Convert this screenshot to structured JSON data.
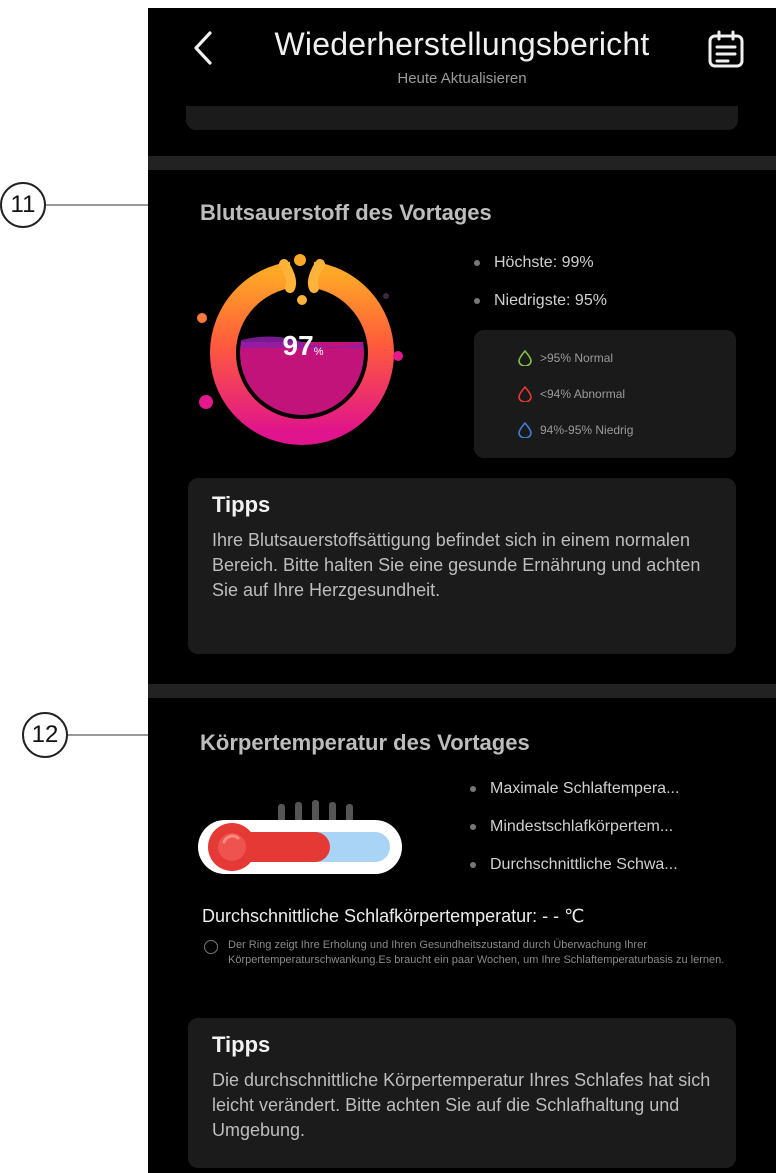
{
  "annotations": [
    "11",
    "12"
  ],
  "header": {
    "title": "Wiederherstellungsbericht",
    "subtitle": "Heute Aktualisieren"
  },
  "blood_oxygen": {
    "title": "Blutsauerstoff des Vortages",
    "value": "97",
    "unit": "%",
    "fill_level": 0.97,
    "highest": "Höchste: 99%",
    "lowest": "Niedrigste: 95%",
    "legend": [
      {
        "label": ">95% Normal",
        "color": "#7ec241"
      },
      {
        "label": "<94% Abnormal",
        "color": "#e53935"
      },
      {
        "label": "94%-95% Niedrig",
        "color": "#3f7fd6"
      }
    ],
    "tips_title": "Tipps",
    "tips_text": "Ihre Blutsauerstoffsättigung befindet sich in einem normalen Bereich. Bitte halten Sie eine gesunde Ernährung und achten Sie auf Ihre Herzgesundheit."
  },
  "body_temperature": {
    "title": "Körpertemperatur des Vortages",
    "stats": [
      "Maximale Schlaftempera...",
      "Mindestschlafkörpertem...",
      "Durchschnittliche Schwa..."
    ],
    "avg_label": "Durchschnittliche Schlafkörpertemperatur: - - ℃",
    "note": "Der Ring zeigt Ihre Erholung und Ihren Gesundheitszustand durch Überwachung Ihrer Körpertemperaturschwankung.Es braucht ein paar Wochen, um Ihre Schlaftemperaturbasis zu lernen.",
    "tips_title": "Tipps",
    "tips_text": "Die durchschnittliche Körpertemperatur Ihres Schlafes hat sich leicht verändert. Bitte achten Sie auf die Schlafhaltung und Umgebung."
  },
  "colors": {
    "background": "#000000",
    "card": "#1b1b1b",
    "gauge_orange": "#ff9d2e",
    "gauge_magenta": "#e2188b",
    "thermo_red": "#e53935",
    "thermo_blue": "#a9d4f5"
  }
}
